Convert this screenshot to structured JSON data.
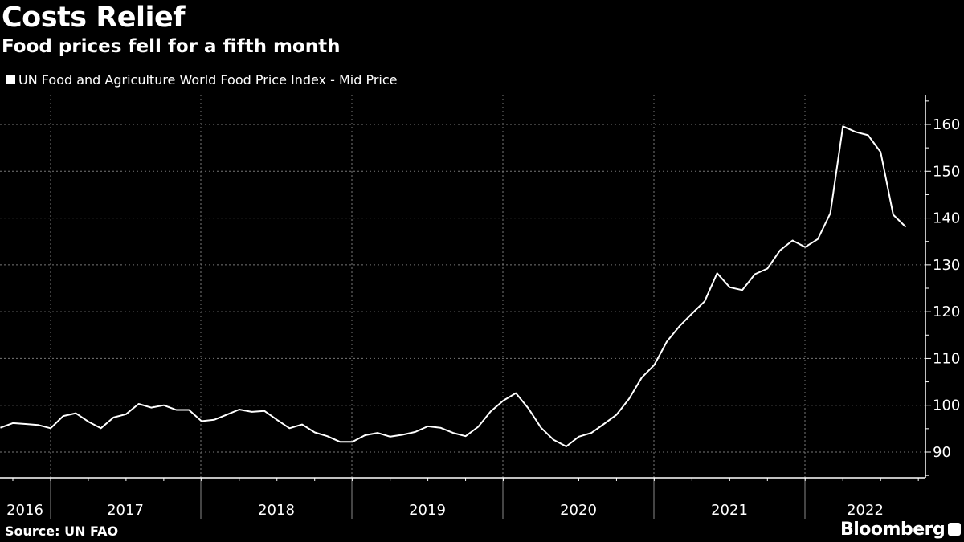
{
  "title": "Costs Relief",
  "subtitle": "Food prices fell for a fifth month",
  "source": "Source: UN FAO",
  "brand": "Bloomberg",
  "colors": {
    "background": "#000000",
    "line": "#ffffff",
    "grid": "#777777"
  },
  "chart_data": {
    "type": "line",
    "title": "Costs Relief",
    "subtitle": "Food prices fell for a fifth month",
    "xlabel": "",
    "ylabel": "",
    "x_start": "2016-09",
    "x_frequency": "monthly",
    "x_end": "2022-09",
    "ylim": [
      85,
      165
    ],
    "y_ticks": [
      90,
      100,
      110,
      120,
      130,
      140,
      150,
      160
    ],
    "x_tick_labels": [
      "2016",
      "2017",
      "2018",
      "2019",
      "2020",
      "2021",
      "2022"
    ],
    "grid": true,
    "legend_position": "top-left",
    "series": [
      {
        "name": "UN Food and Agriculture World Food Price Index - Mid Price",
        "values": [
          95.2,
          96.2,
          96.0,
          95.8,
          95.1,
          97.7,
          98.3,
          96.5,
          95.1,
          97.4,
          98.1,
          100.3,
          99.5,
          100.0,
          99.0,
          99.0,
          96.6,
          96.9,
          98.0,
          99.1,
          98.6,
          98.8,
          96.9,
          95.1,
          95.9,
          94.2,
          93.4,
          92.2,
          92.2,
          93.6,
          94.1,
          93.3,
          93.7,
          94.3,
          95.5,
          95.2,
          94.1,
          93.4,
          95.4,
          98.7,
          101.0,
          102.6,
          99.3,
          95.2,
          92.6,
          91.2,
          93.3,
          94.1,
          96.0,
          98.0,
          101.4,
          105.9,
          108.6,
          113.6,
          116.9,
          119.6,
          122.2,
          128.2,
          125.2,
          124.6,
          128.0,
          129.2,
          133.1,
          135.2,
          133.8,
          135.5,
          141.0,
          159.6,
          158.4,
          157.7,
          154.1,
          140.7,
          138.1
        ]
      }
    ]
  }
}
